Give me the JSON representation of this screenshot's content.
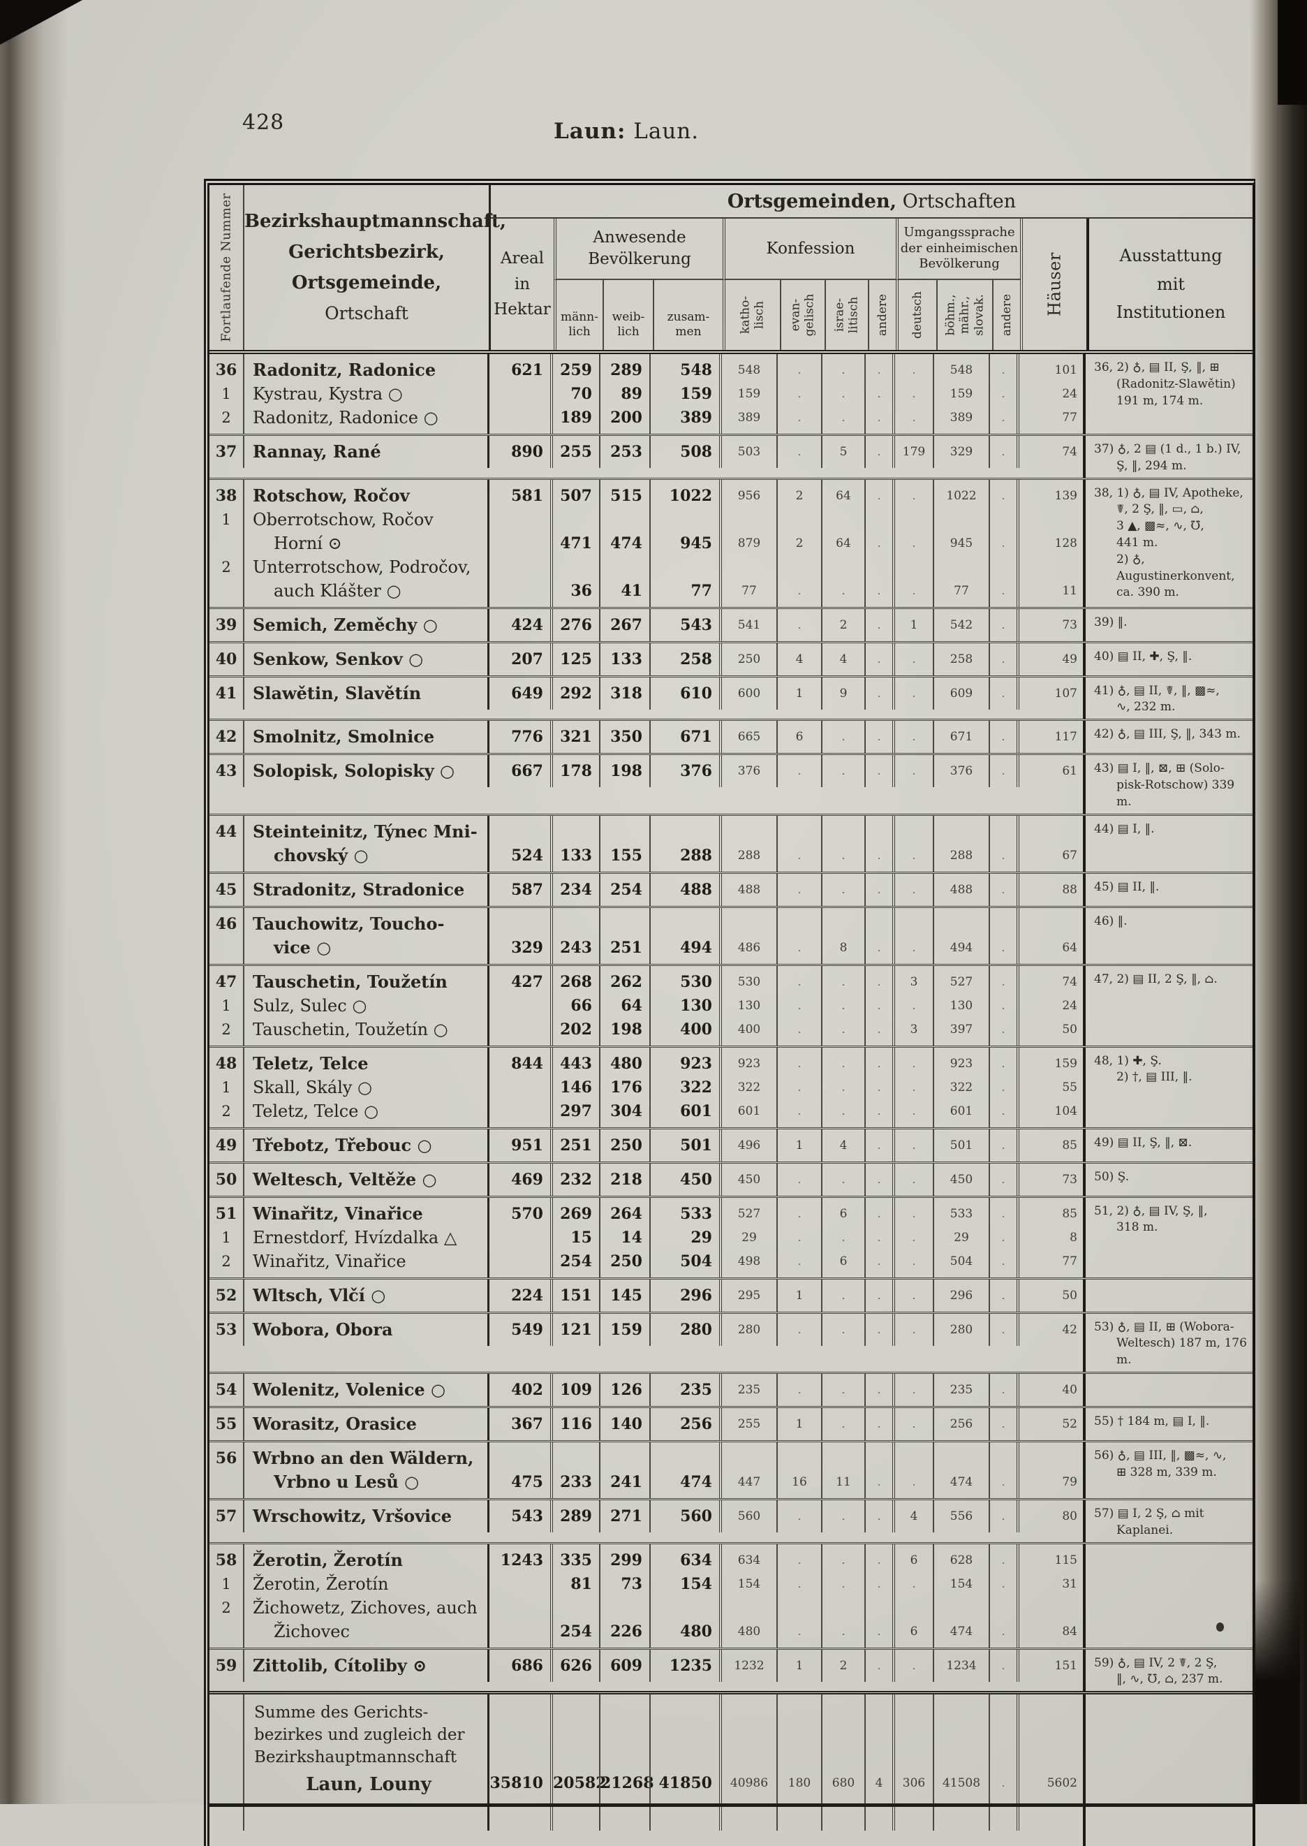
{
  "page": {
    "number": "428",
    "title_bold": "Laun:",
    "title_rest": "Laun."
  },
  "table": {
    "rotated_col": "Fortlaufende Nummer",
    "corner_bold": "Bezirkshauptmannschaft,\nGerichtsbezirk,\nOrtsgemeinde,",
    "corner_last": "Ortschaft",
    "group_header_bold": "Ortsgemeinden,",
    "group_header_rest": "Ortschaften",
    "areal": "Areal\nin\nHektar",
    "bev_label": "Anwesende\nBevölkerung",
    "col_m": "männ-\nlich",
    "col_w": "weib-\nlich",
    "col_z": "zusam-\nmen",
    "konf_label": "Konfession",
    "col_kath": "katho-\nlisch",
    "col_evan": "evan-\ngelisch",
    "col_isr": "israe-\nlitisch",
    "col_and1": "andere",
    "spr_label": "Umgangssprache\nder einheimischen\nBevölkerung",
    "col_deu": "deutsch",
    "col_boehm": "böhm.,\nmähr.,\nslovak.",
    "col_and2": "andere",
    "col_haus": "Häuser",
    "ausstattung": "Ausstattung\nmit\nInstitutionen"
  },
  "rows": [
    {
      "num": "36",
      "note": "36, 2) ♁, ▤ II, Ş, ‖, ⊞\n(Radonitz-Slawětin)\n191 m, 174 m.",
      "lines": [
        {
          "n": "36",
          "nm": [
            "Radonitz, Radonice"
          ],
          "a": "621",
          "m": "259",
          "w": "289",
          "z": "548",
          "k": "548",
          "e": ".",
          "i": ".",
          "o1": ".",
          "d": ".",
          "b": "548",
          "o2": ".",
          "h": "101"
        },
        {
          "n": "1",
          "nm": [
            "Kystrau, Kystra ○"
          ],
          "a": "",
          "m": "70",
          "w": "89",
          "z": "159",
          "k": "159",
          "e": ".",
          "i": ".",
          "o1": ".",
          "d": ".",
          "b": "159",
          "o2": ".",
          "h": "24"
        },
        {
          "n": "2",
          "nm": [
            "Radonitz, Radonice ○"
          ],
          "a": "",
          "m": "189",
          "w": "200",
          "z": "389",
          "k": "389",
          "e": ".",
          "i": ".",
          "o1": ".",
          "d": ".",
          "b": "389",
          "o2": ".",
          "h": "77"
        }
      ]
    },
    {
      "num": "37",
      "note": "37) ♁, 2 ▤ (1 d., 1 b.) IV,\nŞ, ‖, 294 m.",
      "lines": [
        {
          "n": "37",
          "nm": [
            "Rannay, Rané"
          ],
          "a": "890",
          "m": "255",
          "w": "253",
          "z": "508",
          "k": "503",
          "e": ".",
          "i": "5",
          "o1": ".",
          "d": "179",
          "b": "329",
          "o2": ".",
          "h": "74"
        }
      ]
    },
    {
      "num": "38",
      "note": "38, 1) ♁, ▤ IV, Apotheke,\n☤, 2 Ş, ‖, ▭, ⌂,\n3 ▲, ▩≈, ∿, ℧,\n441 m.\n2) ♁, Augustinerkonvent,\nca. 390 m.",
      "lines": [
        {
          "n": "38",
          "nm": [
            "Rotschow, Ročov"
          ],
          "a": "581",
          "m": "507",
          "w": "515",
          "z": "1022",
          "k": "956",
          "e": "2",
          "i": "64",
          "o1": ".",
          "d": ".",
          "b": "1022",
          "o2": ".",
          "h": "139"
        },
        {
          "n": "1",
          "nm": [
            "Oberrotschow, Ročov",
            "Horní ⊙"
          ],
          "a": "",
          "m": "471",
          "w": "474",
          "z": "945",
          "k": "879",
          "e": "2",
          "i": "64",
          "o1": ".",
          "d": ".",
          "b": "945",
          "o2": ".",
          "h": "128"
        },
        {
          "n": "2",
          "nm": [
            "Unterrotschow, Področov,",
            "auch Klášter ○"
          ],
          "a": "",
          "m": "36",
          "w": "41",
          "z": "77",
          "k": "77",
          "e": ".",
          "i": ".",
          "o1": ".",
          "d": ".",
          "b": "77",
          "o2": ".",
          "h": "11"
        }
      ]
    },
    {
      "num": "39",
      "note": "39) ‖.",
      "lines": [
        {
          "n": "39",
          "nm": [
            "Semich, Zeměchy ○"
          ],
          "a": "424",
          "m": "276",
          "w": "267",
          "z": "543",
          "k": "541",
          "e": ".",
          "i": "2",
          "o1": ".",
          "d": "1",
          "b": "542",
          "o2": ".",
          "h": "73"
        }
      ]
    },
    {
      "num": "40",
      "note": "40) ▤ II, ✚, Ş, ‖.",
      "lines": [
        {
          "n": "40",
          "nm": [
            "Senkow, Senkov ○"
          ],
          "a": "207",
          "m": "125",
          "w": "133",
          "z": "258",
          "k": "250",
          "e": "4",
          "i": "4",
          "o1": ".",
          "d": ".",
          "b": "258",
          "o2": ".",
          "h": "49"
        }
      ]
    },
    {
      "num": "41",
      "note": "41) ♁, ▤ II, ☤, ‖, ▩≈,\n∿, 232 m.",
      "lines": [
        {
          "n": "41",
          "nm": [
            "Slawětin, Slavětín"
          ],
          "a": "649",
          "m": "292",
          "w": "318",
          "z": "610",
          "k": "600",
          "e": "1",
          "i": "9",
          "o1": ".",
          "d": ".",
          "b": "609",
          "o2": ".",
          "h": "107"
        }
      ]
    },
    {
      "num": "42",
      "note": "42) ♁, ▤ III, Ş, ‖, 343 m.",
      "lines": [
        {
          "n": "42",
          "nm": [
            "Smolnitz, Smolnice"
          ],
          "a": "776",
          "m": "321",
          "w": "350",
          "z": "671",
          "k": "665",
          "e": "6",
          "i": ".",
          "o1": ".",
          "d": ".",
          "b": "671",
          "o2": ".",
          "h": "117"
        }
      ]
    },
    {
      "num": "43",
      "note": "43) ▤ I, ‖, ⊠, ⊞ (Solo-\npisk-Rotschow) 339 m.",
      "lines": [
        {
          "n": "43",
          "nm": [
            "Solopisk, Solopisky ○"
          ],
          "a": "667",
          "m": "178",
          "w": "198",
          "z": "376",
          "k": "376",
          "e": ".",
          "i": ".",
          "o1": ".",
          "d": ".",
          "b": "376",
          "o2": ".",
          "h": "61"
        }
      ]
    },
    {
      "num": "44",
      "note": "44) ▤ I, ‖.",
      "lines": [
        {
          "n": "44",
          "nm": [
            "Steinteinitz, Týnec Mni-",
            "chovský ○"
          ],
          "a": "524",
          "m": "133",
          "w": "155",
          "z": "288",
          "k": "288",
          "e": ".",
          "i": ".",
          "o1": ".",
          "d": ".",
          "b": "288",
          "o2": ".",
          "h": "67"
        }
      ]
    },
    {
      "num": "45",
      "note": "45) ▤ II, ‖.",
      "lines": [
        {
          "n": "45",
          "nm": [
            "Stradonitz, Stradonice"
          ],
          "a": "587",
          "m": "234",
          "w": "254",
          "z": "488",
          "k": "488",
          "e": ".",
          "i": ".",
          "o1": ".",
          "d": ".",
          "b": "488",
          "o2": ".",
          "h": "88"
        }
      ]
    },
    {
      "num": "46",
      "note": "46) ‖.",
      "lines": [
        {
          "n": "46",
          "nm": [
            "Tauchowitz, Toucho-",
            "vice ○"
          ],
          "a": "329",
          "m": "243",
          "w": "251",
          "z": "494",
          "k": "486",
          "e": ".",
          "i": "8",
          "o1": ".",
          "d": ".",
          "b": "494",
          "o2": ".",
          "h": "64"
        }
      ]
    },
    {
      "num": "47",
      "note": "47, 2) ▤ II, 2 Ş, ‖, ⌂.",
      "lines": [
        {
          "n": "47",
          "nm": [
            "Tauschetin, Toužetín"
          ],
          "a": "427",
          "m": "268",
          "w": "262",
          "z": "530",
          "k": "530",
          "e": ".",
          "i": ".",
          "o1": ".",
          "d": "3",
          "b": "527",
          "o2": ".",
          "h": "74"
        },
        {
          "n": "1",
          "nm": [
            "Sulz, Sulec ○"
          ],
          "a": "",
          "m": "66",
          "w": "64",
          "z": "130",
          "k": "130",
          "e": ".",
          "i": ".",
          "o1": ".",
          "d": ".",
          "b": "130",
          "o2": ".",
          "h": "24"
        },
        {
          "n": "2",
          "nm": [
            "Tauschetin, Toužetín ○"
          ],
          "a": "",
          "m": "202",
          "w": "198",
          "z": "400",
          "k": "400",
          "e": ".",
          "i": ".",
          "o1": ".",
          "d": "3",
          "b": "397",
          "o2": ".",
          "h": "50"
        }
      ]
    },
    {
      "num": "48",
      "note": "48, 1) ✚, Ş.\n2) †, ▤ III, ‖.",
      "lines": [
        {
          "n": "48",
          "nm": [
            "Teletz, Telce"
          ],
          "a": "844",
          "m": "443",
          "w": "480",
          "z": "923",
          "k": "923",
          "e": ".",
          "i": ".",
          "o1": ".",
          "d": ".",
          "b": "923",
          "o2": ".",
          "h": "159"
        },
        {
          "n": "1",
          "nm": [
            "Skall, Skály ○"
          ],
          "a": "",
          "m": "146",
          "w": "176",
          "z": "322",
          "k": "322",
          "e": ".",
          "i": ".",
          "o1": ".",
          "d": ".",
          "b": "322",
          "o2": ".",
          "h": "55"
        },
        {
          "n": "2",
          "nm": [
            "Teletz, Telce ○"
          ],
          "a": "",
          "m": "297",
          "w": "304",
          "z": "601",
          "k": "601",
          "e": ".",
          "i": ".",
          "o1": ".",
          "d": ".",
          "b": "601",
          "o2": ".",
          "h": "104"
        }
      ]
    },
    {
      "num": "49",
      "note": "49) ▤ II, Ş, ‖, ⊠.",
      "lines": [
        {
          "n": "49",
          "nm": [
            "Třebotz, Třebouc ○"
          ],
          "a": "951",
          "m": "251",
          "w": "250",
          "z": "501",
          "k": "496",
          "e": "1",
          "i": "4",
          "o1": ".",
          "d": ".",
          "b": "501",
          "o2": ".",
          "h": "85"
        }
      ]
    },
    {
      "num": "50",
      "note": "50) Ş.",
      "lines": [
        {
          "n": "50",
          "nm": [
            "Weltesch, Veltěže ○"
          ],
          "a": "469",
          "m": "232",
          "w": "218",
          "z": "450",
          "k": "450",
          "e": ".",
          "i": ".",
          "o1": ".",
          "d": ".",
          "b": "450",
          "o2": ".",
          "h": "73"
        }
      ]
    },
    {
      "num": "51",
      "note": "51, 2) ♁, ▤ IV, Ş, ‖,\n318 m.",
      "lines": [
        {
          "n": "51",
          "nm": [
            "Winařitz, Vinařice"
          ],
          "a": "570",
          "m": "269",
          "w": "264",
          "z": "533",
          "k": "527",
          "e": ".",
          "i": "6",
          "o1": ".",
          "d": ".",
          "b": "533",
          "o2": ".",
          "h": "85"
        },
        {
          "n": "1",
          "nm": [
            "Ernestdorf, Hvízdalka △"
          ],
          "a": "",
          "m": "15",
          "w": "14",
          "z": "29",
          "k": "29",
          "e": ".",
          "i": ".",
          "o1": ".",
          "d": ".",
          "b": "29",
          "o2": ".",
          "h": "8"
        },
        {
          "n": "2",
          "nm": [
            "Winařitz, Vinařice"
          ],
          "a": "",
          "m": "254",
          "w": "250",
          "z": "504",
          "k": "498",
          "e": ".",
          "i": "6",
          "o1": ".",
          "d": ".",
          "b": "504",
          "o2": ".",
          "h": "77"
        }
      ]
    },
    {
      "num": "52",
      "note": "",
      "lines": [
        {
          "n": "52",
          "nm": [
            "Wltsch, Vlčí ○"
          ],
          "a": "224",
          "m": "151",
          "w": "145",
          "z": "296",
          "k": "295",
          "e": "1",
          "i": ".",
          "o1": ".",
          "d": ".",
          "b": "296",
          "o2": ".",
          "h": "50"
        }
      ]
    },
    {
      "num": "53",
      "note": "53) ♁, ▤ II, ⊞ (Wobora-\nWeltesch) 187 m, 176 m.",
      "lines": [
        {
          "n": "53",
          "nm": [
            "Wobora, Obora"
          ],
          "a": "549",
          "m": "121",
          "w": "159",
          "z": "280",
          "k": "280",
          "e": ".",
          "i": ".",
          "o1": ".",
          "d": ".",
          "b": "280",
          "o2": ".",
          "h": "42"
        }
      ]
    },
    {
      "num": "54",
      "note": "",
      "lines": [
        {
          "n": "54",
          "nm": [
            "Wolenitz, Volenice ○"
          ],
          "a": "402",
          "m": "109",
          "w": "126",
          "z": "235",
          "k": "235",
          "e": ".",
          "i": ".",
          "o1": ".",
          "d": ".",
          "b": "235",
          "o2": ".",
          "h": "40"
        }
      ]
    },
    {
      "num": "55",
      "note": "55) † 184 m, ▤ I, ‖.",
      "lines": [
        {
          "n": "55",
          "nm": [
            "Worasitz, Orasice"
          ],
          "a": "367",
          "m": "116",
          "w": "140",
          "z": "256",
          "k": "255",
          "e": "1",
          "i": ".",
          "o1": ".",
          "d": ".",
          "b": "256",
          "o2": ".",
          "h": "52"
        }
      ]
    },
    {
      "num": "56",
      "note": "56) ♁, ▤ III, ‖, ▩≈, ∿,\n⊞ 328 m, 339 m.",
      "lines": [
        {
          "n": "56",
          "nm": [
            "Wrbno an den Wäldern,",
            "Vrbno u Lesů ○"
          ],
          "a": "475",
          "m": "233",
          "w": "241",
          "z": "474",
          "k": "447",
          "e": "16",
          "i": "11",
          "o1": ".",
          "d": ".",
          "b": "474",
          "o2": ".",
          "h": "79"
        }
      ]
    },
    {
      "num": "57",
      "note": "57) ▤ I, 2 Ş, ⌂ mit\nKaplanei.",
      "lines": [
        {
          "n": "57",
          "nm": [
            "Wrschowitz, Vršovice"
          ],
          "a": "543",
          "m": "289",
          "w": "271",
          "z": "560",
          "k": "560",
          "e": ".",
          "i": ".",
          "o1": ".",
          "d": "4",
          "b": "556",
          "o2": ".",
          "h": "80"
        }
      ]
    },
    {
      "num": "58",
      "note": "",
      "lines": [
        {
          "n": "58",
          "nm": [
            "Žerotin, Žerotín"
          ],
          "a": "1243",
          "m": "335",
          "w": "299",
          "z": "634",
          "k": "634",
          "e": ".",
          "i": ".",
          "o1": ".",
          "d": "6",
          "b": "628",
          "o2": ".",
          "h": "115"
        },
        {
          "n": "1",
          "nm": [
            "Žerotin, Žerotín"
          ],
          "a": "",
          "m": "81",
          "w": "73",
          "z": "154",
          "k": "154",
          "e": ".",
          "i": ".",
          "o1": ".",
          "d": ".",
          "b": "154",
          "o2": ".",
          "h": "31"
        },
        {
          "n": "2",
          "nm": [
            "Žichowetz, Zichoves, auch",
            "Žichovec"
          ],
          "a": "",
          "m": "254",
          "w": "226",
          "z": "480",
          "k": "480",
          "e": ".",
          "i": ".",
          "o1": ".",
          "d": "6",
          "b": "474",
          "o2": ".",
          "h": "84"
        }
      ]
    },
    {
      "num": "59",
      "note": "59) ♁, ▤ IV, 2 ☤, 2 Ş,\n‖, ∿, ℧, ⌂, 237 m.",
      "lines": [
        {
          "n": "59",
          "nm": [
            "Zittolib, Cítoliby ⊙"
          ],
          "a": "686",
          "m": "626",
          "w": "609",
          "z": "1235",
          "k": "1232",
          "e": "1",
          "i": "2",
          "o1": ".",
          "d": ".",
          "b": "1234",
          "o2": ".",
          "h": "151"
        }
      ]
    }
  ],
  "summary": {
    "name_lines": "Summe des Gerichts-\nbezirkes und zugleich der\nBezirkshauptmannschaft",
    "name_bold": "Laun, Louny",
    "a": "35810",
    "m": "20582",
    "w": "21268",
    "z": "41850",
    "k": "40986",
    "e": "180",
    "i": "680",
    "o1": "4",
    "d": "306",
    "b": "41508",
    "o2": ".",
    "h": "5602"
  }
}
